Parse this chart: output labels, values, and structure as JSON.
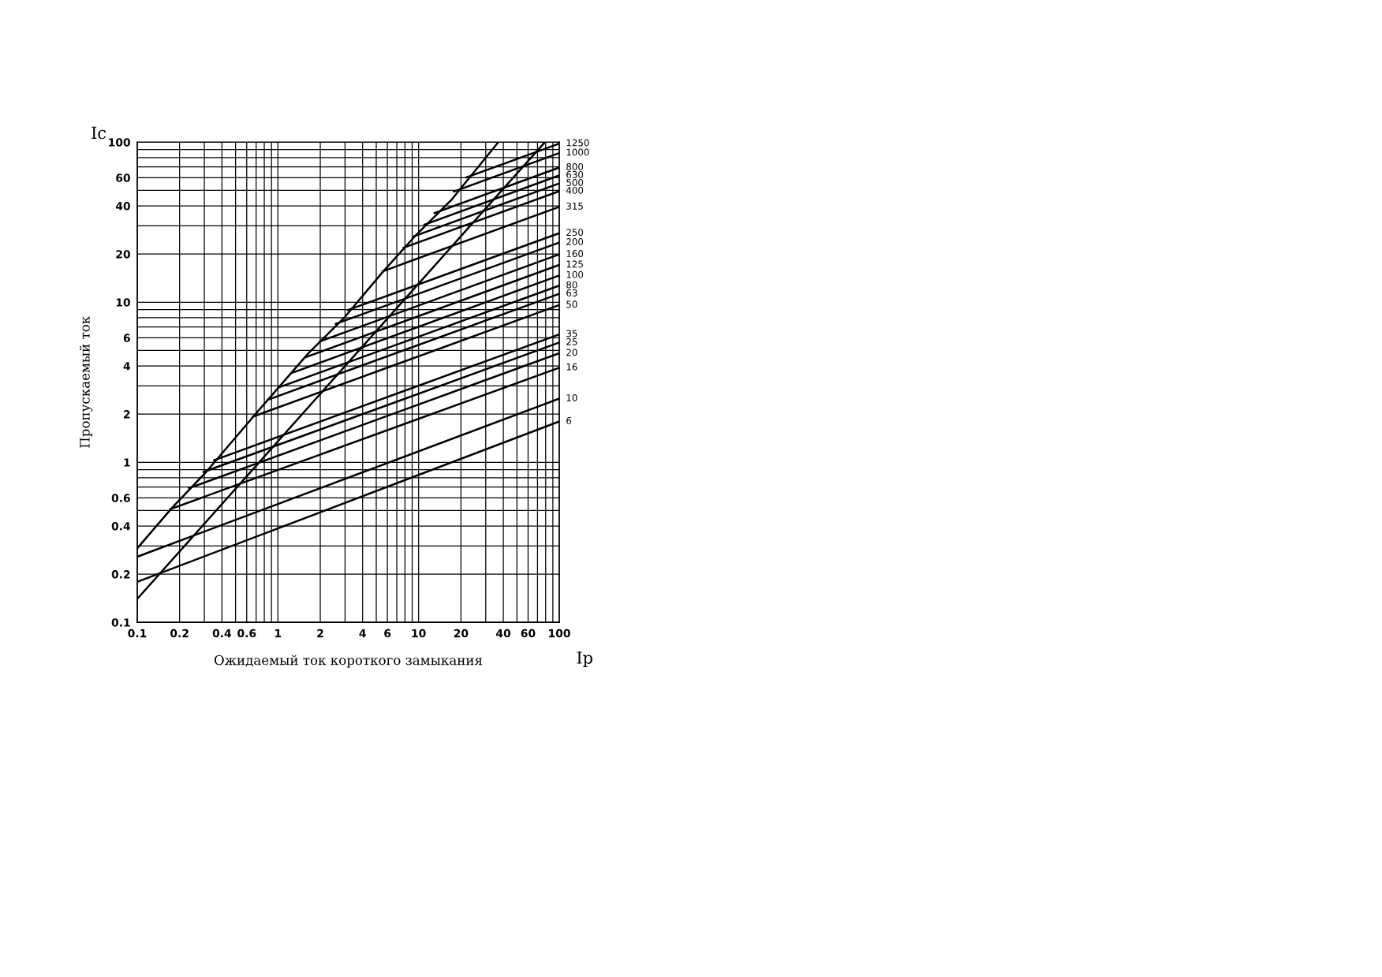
{
  "chart_data": {
    "type": "line",
    "xlabel": "Ожидаемый ток короткого замыкания",
    "ylabel": "Пропускаемый ток",
    "annotations": [
      "Ic",
      "Ip"
    ],
    "log": "xy",
    "grid": true,
    "legend": false,
    "marker": "none",
    "line_style": "solid",
    "xlim": [
      0.1,
      100
    ],
    "ylim": [
      0.1,
      100
    ],
    "xticks": [
      0.1,
      0.2,
      {
        "value": 0.3,
        "label": null
      },
      0.4,
      {
        "value": 0.5,
        "label": null
      },
      0.6,
      {
        "value": 0.7,
        "label": null
      },
      {
        "value": 0.8,
        "label": null
      },
      {
        "value": 0.9,
        "label": null
      },
      1,
      2,
      {
        "value": 3,
        "label": null
      },
      4,
      {
        "value": 5,
        "label": null
      },
      6,
      {
        "value": 7,
        "label": null
      },
      {
        "value": 8,
        "label": null
      },
      {
        "value": 9,
        "label": null
      },
      10,
      20,
      {
        "value": 30,
        "label": null
      },
      40,
      {
        "value": 50,
        "label": null
      },
      60,
      {
        "value": 70,
        "label": null
      },
      {
        "value": 80,
        "label": null
      },
      {
        "value": 90,
        "label": null
      },
      100
    ],
    "yticks": [
      0.1,
      0.2,
      {
        "value": 0.3,
        "label": null
      },
      0.4,
      {
        "value": 0.5,
        "label": null
      },
      0.6,
      {
        "value": 0.7,
        "label": null
      },
      {
        "value": 0.8,
        "label": null
      },
      {
        "value": 0.9,
        "label": null
      },
      1,
      2,
      {
        "value": 3,
        "label": null
      },
      4,
      {
        "value": 5,
        "label": null
      },
      6,
      {
        "value": 7,
        "label": null
      },
      {
        "value": 8,
        "label": null
      },
      {
        "value": 9,
        "label": null
      },
      10,
      20,
      {
        "value": 30,
        "label": null
      },
      40,
      {
        "value": 50,
        "label": null
      },
      60,
      {
        "value": 70,
        "label": null
      },
      {
        "value": 80,
        "label": null
      },
      {
        "value": 90,
        "label": null
      },
      100
    ],
    "series": [
      {
        "color": "#000000",
        "x": [
          0.1,
          0.177,
          0.309,
          0.723,
          1.64,
          2.96,
          5.47,
          9.29,
          17.2,
          36.9
        ],
        "values": [
          0.29,
          0.52,
          0.87,
          2.09,
          4.78,
          8.0,
          15.2,
          25.5,
          43.8,
          100
        ]
      },
      {
        "color": "#000000",
        "x": [
          0.1,
          79
        ],
        "values": [
          0.14,
          100
        ]
      },
      {
        "name": "6",
        "color": "#000000",
        "x": [
          0.1,
          100
        ],
        "values": [
          0.179,
          1.8
        ]
      },
      {
        "name": "10",
        "color": "#000000",
        "x": [
          0.1,
          100
        ],
        "values": [
          0.257,
          2.5
        ]
      },
      {
        "name": "16",
        "color": "#000000",
        "x": [
          0.172,
          100
        ],
        "values": [
          0.51,
          3.9
        ]
      },
      {
        "name": "20",
        "color": "#000000",
        "x": [
          0.234,
          100
        ],
        "values": [
          0.69,
          4.8
        ]
      },
      {
        "name": "25",
        "color": "#000000",
        "x": [
          0.296,
          100
        ],
        "values": [
          0.87,
          5.6
        ]
      },
      {
        "name": "35",
        "color": "#000000",
        "x": [
          0.352,
          100
        ],
        "values": [
          1.03,
          6.3
        ]
      },
      {
        "name": "50",
        "color": "#000000",
        "x": [
          0.665,
          100
        ],
        "values": [
          1.93,
          9.6
        ]
      },
      {
        "name": "63",
        "color": "#000000",
        "x": [
          0.85,
          100
        ],
        "values": [
          2.46,
          11.3
        ]
      },
      {
        "name": "80",
        "color": "#000000",
        "x": [
          1.01,
          100
        ],
        "values": [
          2.93,
          12.7
        ]
      },
      {
        "name": "100",
        "color": "#000000",
        "x": [
          1.26,
          100
        ],
        "values": [
          3.62,
          14.7
        ]
      },
      {
        "name": "125",
        "color": "#000000",
        "x": [
          1.58,
          100
        ],
        "values": [
          4.54,
          17.1
        ]
      },
      {
        "name": "160",
        "color": "#000000",
        "x": [
          1.99,
          100
        ],
        "values": [
          5.69,
          19.9
        ]
      },
      {
        "name": "200",
        "color": "#000000",
        "x": [
          2.58,
          100
        ],
        "values": [
          7.33,
          23.6
        ]
      },
      {
        "name": "250",
        "color": "#000000",
        "x": [
          3.15,
          100
        ],
        "values": [
          8.93,
          27.0
        ]
      },
      {
        "name": "315",
        "color": "#000000",
        "x": [
          5.55,
          100
        ],
        "values": [
          15.6,
          39.4
        ]
      },
      {
        "name": "400",
        "color": "#000000",
        "x": [
          7.82,
          100
        ],
        "values": [
          21.9,
          49.4
        ]
      },
      {
        "name": "500",
        "color": "#000000",
        "x": [
          9.27,
          100
        ],
        "values": [
          25.8,
          55.3
        ]
      },
      {
        "name": "630",
        "color": "#000000",
        "x": [
          11.0,
          100
        ],
        "values": [
          30.5,
          62.0
        ]
      },
      {
        "name": "800",
        "color": "#000000",
        "x": [
          13.0,
          100
        ],
        "values": [
          36.1,
          69.4
        ]
      },
      {
        "name": "1000",
        "color": "#000000",
        "x": [
          17.8,
          100
        ],
        "values": [
          49.2,
          85.5
        ]
      },
      {
        "name": "1250",
        "color": "#000000",
        "x": [
          21.9,
          100
        ],
        "values": [
          60.2,
          98.0
        ]
      }
    ]
  }
}
